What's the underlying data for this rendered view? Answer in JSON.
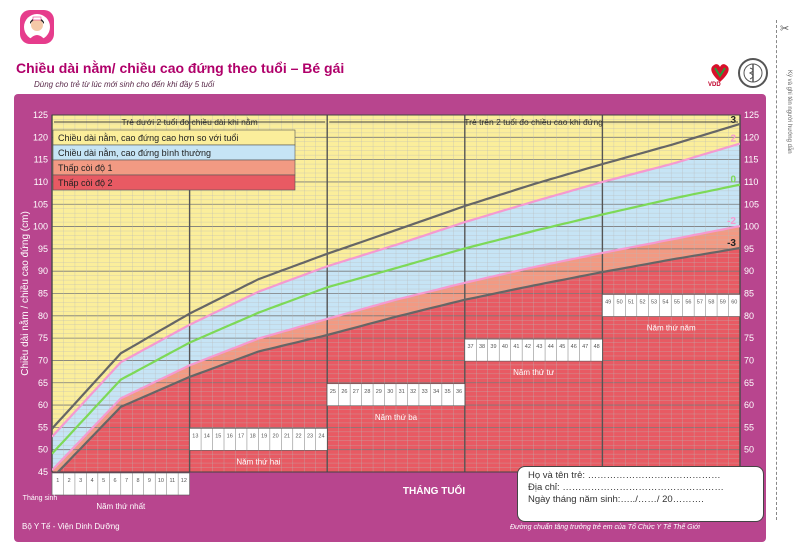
{
  "header": {
    "title": "Chiều dài nằm/ chiều cao đứng theo tuổi – Bé gái",
    "subtitle": "Dùng cho trẻ từ lúc mới sinh cho đến khi đầy 5 tuổi",
    "logo_icon": "nurse-girl-icon",
    "vdd_logo_text": "VDD",
    "who_logo_icon": "who-emblem-icon",
    "cut_icon": "scissors-icon",
    "cut_text": "Ký và ghi tên người hướng dẫn"
  },
  "colors": {
    "background": "#b8458e",
    "zone_tall": "#fbee9b",
    "zone_normal": "#c6e4f5",
    "zone_stunt1": "#f29a83",
    "zone_stunt2": "#e85a63",
    "line_pos3_neg3": "#666666",
    "line_pos2_neg2": "#f59ad0",
    "line_median": "#7dd957",
    "title": "#b0006a"
  },
  "chart_data": {
    "type": "line",
    "title": "Chiều dài nằm/ chiều cao đứng theo tuổi – Bé gái",
    "ylabel": "Chiều dài nằm / chiều cao đứng (cm)",
    "xlabel": "THÁNG TUỔI",
    "ylim": [
      45,
      125
    ],
    "xlim_months": [
      0,
      60
    ],
    "y_ticks": [
      45,
      50,
      55,
      60,
      65,
      70,
      75,
      80,
      85,
      90,
      95,
      100,
      105,
      110,
      115,
      120,
      125
    ],
    "grid": true,
    "age_sections": [
      "Trẻ dưới 2 tuổi đo chiều dài khi nằm",
      "Trẻ trên 2 tuổi đo chiều cao khi đứng"
    ],
    "year_labels": [
      "Năm thứ nhất",
      "Năm thứ hai",
      "Năm thứ ba",
      "Năm thứ tư",
      "Năm thứ năm"
    ],
    "start_label": "Tháng sinh",
    "legend": [
      {
        "label": "Chiều dài nằm, cao đứng cao hơn so với tuổi",
        "color": "#fbee9b"
      },
      {
        "label": "Chiều dài nằm, cao đứng bình thường",
        "color": "#c6e4f5"
      },
      {
        "label": "Thấp còi độ 1",
        "color": "#f29a83"
      },
      {
        "label": "Thấp còi độ 2",
        "color": "#e85a63"
      }
    ],
    "legend_position": "top-left",
    "x_months": [
      0,
      6,
      12,
      18,
      24,
      30,
      36,
      42,
      48,
      54,
      60
    ],
    "series": [
      {
        "name": "3",
        "color": "#666666",
        "values": [
          54.7,
          71.6,
          80.5,
          88.2,
          93.9,
          99.2,
          104.6,
          109.5,
          114.0,
          118.3,
          123.0
        ]
      },
      {
        "name": "2",
        "color": "#f59ad0",
        "values": [
          52.9,
          69.6,
          78.0,
          85.4,
          91.1,
          95.9,
          101.0,
          105.6,
          110.0,
          114.0,
          118.6
        ]
      },
      {
        "name": "0",
        "color": "#7dd957",
        "values": [
          49.1,
          65.7,
          74.0,
          80.7,
          86.4,
          90.7,
          95.1,
          99.0,
          102.7,
          106.2,
          109.4
        ]
      },
      {
        "name": "-2",
        "color": "#f59ad0",
        "values": [
          45.4,
          61.5,
          68.9,
          74.9,
          79.3,
          83.6,
          87.4,
          90.9,
          94.1,
          97.1,
          100.1
        ]
      },
      {
        "name": "-3",
        "color": "#666666",
        "values": [
          43.6,
          59.6,
          66.3,
          72.0,
          75.7,
          79.8,
          83.6,
          86.8,
          89.8,
          92.6,
          95.2
        ]
      }
    ]
  },
  "info": {
    "name_label": "Họ và tên trẻ: ……………………………………",
    "address_label": "Địa chỉ: ……………………………………………",
    "dob_label": "Ngày tháng năm sinh:…../……/ 20………."
  },
  "footer": {
    "left": "Bộ Y Tế - Viện Dinh Dưỡng",
    "right": "Đường chuẩn tăng trưởng trẻ em của Tổ Chức Y Tế Thế Giới"
  }
}
